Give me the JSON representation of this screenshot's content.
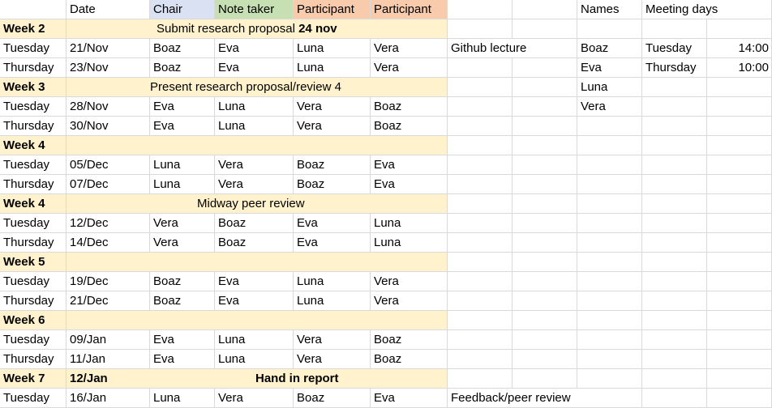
{
  "header": {
    "date": "Date",
    "chair": "Chair",
    "note_taker": "Note taker",
    "participant1": "Participant",
    "participant2": "Participant",
    "names": "Names",
    "meeting_days": "Meeting days"
  },
  "names": [
    "Boaz",
    "Eva",
    "Luna",
    "Vera"
  ],
  "meeting_days": [
    {
      "day": "Tuesday",
      "time": "14:00"
    },
    {
      "day": "Thursday",
      "time": "10:00"
    }
  ],
  "side_notes": {
    "github": "Github lecture",
    "feedback": "Feedback/peer review"
  },
  "weeks": [
    {
      "label": "Week 2",
      "note_pre": "Submit research proposal ",
      "note_bold": "24 nov"
    },
    {
      "label": "Week 3",
      "note": "Present research proposal/review 4"
    },
    {
      "label": "Week 4"
    },
    {
      "label": "Week 4",
      "note": "Midway peer review"
    },
    {
      "label": "Week 5"
    },
    {
      "label": "Week 6"
    },
    {
      "label": "Week 7",
      "date": "12/Jan",
      "note": "Hand in report"
    }
  ],
  "rows": [
    [
      "Tuesday",
      "21/Nov",
      "Boaz",
      "Eva",
      "Luna",
      "Vera"
    ],
    [
      "Thursday",
      "23/Nov",
      "Boaz",
      "Eva",
      "Luna",
      "Vera"
    ],
    [
      "Tuesday",
      "28/Nov",
      "Eva",
      "Luna",
      "Vera",
      "Boaz"
    ],
    [
      "Thursday",
      "30/Nov",
      "Eva",
      "Luna",
      "Vera",
      "Boaz"
    ],
    [
      "Tuesday",
      "05/Dec",
      "Luna",
      "Vera",
      "Boaz",
      "Eva"
    ],
    [
      "Thursday",
      "07/Dec",
      "Luna",
      "Vera",
      "Boaz",
      "Eva"
    ],
    [
      "Tuesday",
      "12/Dec",
      "Vera",
      "Boaz",
      "Eva",
      "Luna"
    ],
    [
      "Thursday",
      "14/Dec",
      "Vera",
      "Boaz",
      "Eva",
      "Luna"
    ],
    [
      "Tuesday",
      "19/Dec",
      "Boaz",
      "Eva",
      "Luna",
      "Vera"
    ],
    [
      "Thursday",
      "21/Dec",
      "Boaz",
      "Eva",
      "Luna",
      "Vera"
    ],
    [
      "Tuesday",
      "09/Jan",
      "Eva",
      "Luna",
      "Vera",
      "Boaz"
    ],
    [
      "Thursday",
      "11/Jan",
      "Eva",
      "Luna",
      "Vera",
      "Boaz"
    ],
    [
      "Tuesday",
      "16/Jan",
      "Luna",
      "Vera",
      "Boaz",
      "Eva"
    ]
  ]
}
